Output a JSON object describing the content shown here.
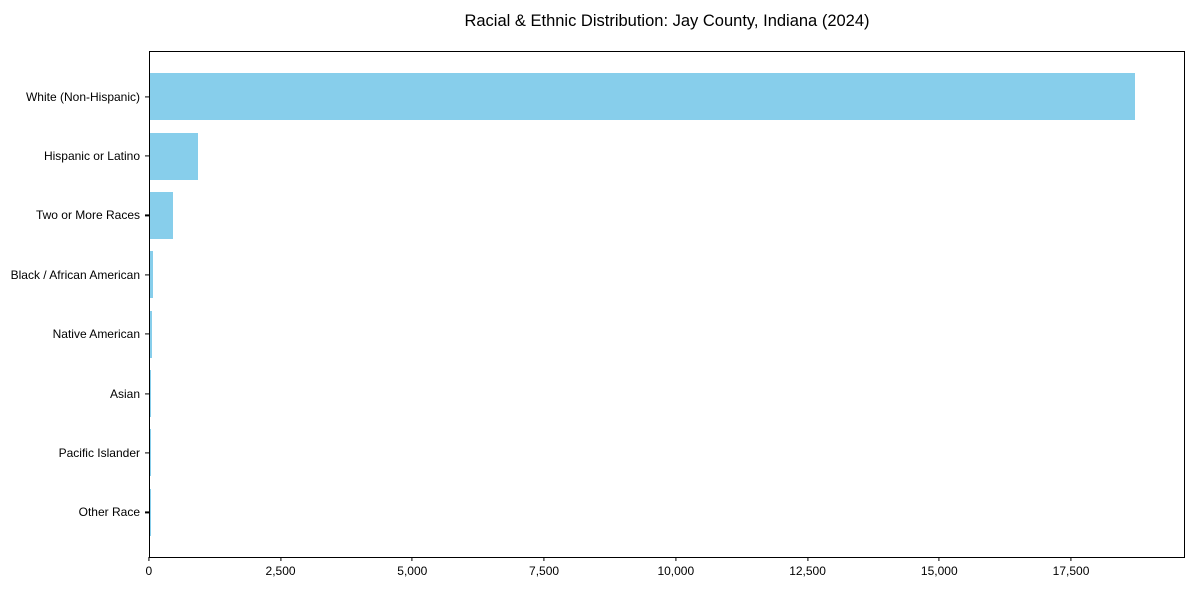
{
  "chart_data": {
    "type": "bar",
    "orientation": "horizontal",
    "title": "Racial & Ethnic Distribution: Jay County, Indiana (2024)",
    "categories": [
      "White (Non-Hispanic)",
      "Hispanic or Latino",
      "Two or More Races",
      "Black / African American",
      "Native American",
      "Asian",
      "Pacific Islander",
      "Other Race"
    ],
    "values": [
      18730,
      920,
      430,
      65,
      30,
      20,
      10,
      5
    ],
    "xlabel": "",
    "ylabel": "",
    "xlim": [
      0,
      19666
    ],
    "x_ticks": [
      0,
      2500,
      5000,
      7500,
      10000,
      12500,
      15000,
      17500
    ],
    "x_tick_labels": [
      "0",
      "2,500",
      "5,000",
      "7,500",
      "10,000",
      "12,500",
      "15,000",
      "17,500"
    ],
    "bar_color": "#87CEEB",
    "axis_color": "#000000",
    "background_color": "#FFFFFF",
    "grid": false,
    "legend": null
  }
}
